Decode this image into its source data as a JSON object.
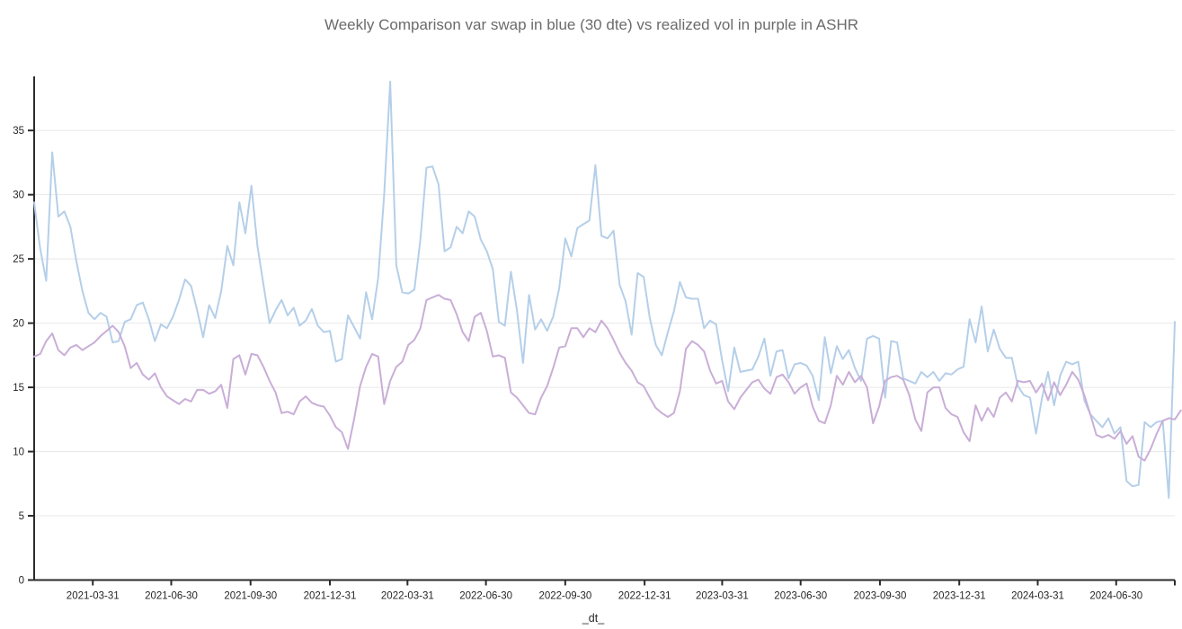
{
  "title": "Weekly Comparison var swap in blue (30 dte) vs realized vol in purple in ASHR",
  "colors": {
    "var_swap_blue": "#b5cfe9",
    "realized_vol_purple": "#c9aed7",
    "gridline": "#e8e8e8",
    "axis": "#2b2b2b",
    "title_text": "#6b6b6b",
    "tick_text": "#262626",
    "background": "#ffffff"
  },
  "chart_data": {
    "type": "line",
    "title": "Weekly Comparison var swap in blue (30 dte) vs realized vol in purple in ASHR",
    "xlabel": "_dt_",
    "ylabel": "",
    "x_start": "2021-01-22",
    "x_frequency": "weekly",
    "x_tick_labels": [
      "2021-03-31",
      "2021-06-30",
      "2021-09-30",
      "2021-12-31",
      "2022-03-31",
      "2022-06-30",
      "2022-09-30",
      "2022-12-31",
      "2023-03-31",
      "2023-06-30",
      "2023-09-30",
      "2023-12-31",
      "2024-03-31",
      "2024-06-30"
    ],
    "y_ticks": [
      0,
      5,
      10,
      15,
      20,
      25,
      30,
      35
    ],
    "ylim": [
      0,
      39.2
    ],
    "grid": "horizontal-only",
    "legend_position": "none",
    "series": [
      {
        "name": "var swap (30 dte)",
        "color": "#b5cfe9",
        "values": [
          29.4,
          25.8,
          23.3,
          33.3,
          28.3,
          28.7,
          27.5,
          24.8,
          22.5,
          20.8,
          20.3,
          20.8,
          20.5,
          18.5,
          18.6,
          20.1,
          20.3,
          21.4,
          21.6,
          20.3,
          18.6,
          19.9,
          19.6,
          20.5,
          21.8,
          23.4,
          22.9,
          21.0,
          18.9,
          21.4,
          20.4,
          22.5,
          26.0,
          24.5,
          29.4,
          27.0,
          30.7,
          26.0,
          23.0,
          20.0,
          21.0,
          21.8,
          20.6,
          21.2,
          19.8,
          20.2,
          21.1,
          19.8,
          19.3,
          19.4,
          17.0,
          17.2,
          20.6,
          19.7,
          18.8,
          22.4,
          20.3,
          23.5,
          30.0,
          38.8,
          24.5,
          22.4,
          22.3,
          22.6,
          26.5,
          32.1,
          32.2,
          30.8,
          25.6,
          25.9,
          27.5,
          27.0,
          28.7,
          28.3,
          26.5,
          25.6,
          24.2,
          20.1,
          19.8,
          24.0,
          21.0,
          16.9,
          22.2,
          19.5,
          20.3,
          19.4,
          20.5,
          22.7,
          26.6,
          25.2,
          27.4,
          27.7,
          28.0,
          32.3,
          26.8,
          26.6,
          27.2,
          23.0,
          21.7,
          19.1,
          23.9,
          23.6,
          20.4,
          18.3,
          17.5,
          19.3,
          20.9,
          23.2,
          22.0,
          21.9,
          21.9,
          19.6,
          20.2,
          19.9,
          17.1,
          14.7,
          18.1,
          16.2,
          16.3,
          16.4,
          17.4,
          18.8,
          15.9,
          17.8,
          17.9,
          15.7,
          16.8,
          16.9,
          16.7,
          15.9,
          14.0,
          18.9,
          16.1,
          18.2,
          17.2,
          17.9,
          16.5,
          15.5,
          18.8,
          19.0,
          18.8,
          14.2,
          18.6,
          18.5,
          15.7,
          15.5,
          15.3,
          16.2,
          15.8,
          16.2,
          15.5,
          16.1,
          16.0,
          16.4,
          16.6,
          20.3,
          18.5,
          21.3,
          17.8,
          19.5,
          18.0,
          17.3,
          17.3,
          15.1,
          14.4,
          14.2,
          11.4,
          14.2,
          16.2,
          13.6,
          15.9,
          17.0,
          16.8,
          17.0,
          14.0,
          12.9,
          12.4,
          11.9,
          12.6,
          11.4,
          11.9,
          7.7,
          7.3,
          7.4,
          12.3,
          11.9,
          12.3,
          12.4,
          6.4,
          20.1
        ]
      },
      {
        "name": "realized vol",
        "color": "#c9aed7",
        "values": [
          17.4,
          17.6,
          18.6,
          19.2,
          17.9,
          17.5,
          18.1,
          18.3,
          17.9,
          18.2,
          18.5,
          19.0,
          19.4,
          19.8,
          19.3,
          18.2,
          16.5,
          16.9,
          16.0,
          15.6,
          16.1,
          15.0,
          14.3,
          14.0,
          13.7,
          14.1,
          13.9,
          14.8,
          14.8,
          14.5,
          14.7,
          15.2,
          13.4,
          17.2,
          17.5,
          16.0,
          17.6,
          17.5,
          16.6,
          15.5,
          14.6,
          13.0,
          13.1,
          12.9,
          13.9,
          14.3,
          13.8,
          13.6,
          13.5,
          12.8,
          11.9,
          11.5,
          10.2,
          12.5,
          15.1,
          16.6,
          17.6,
          17.4,
          13.7,
          15.5,
          16.6,
          17.0,
          18.3,
          18.7,
          19.6,
          21.8,
          22.0,
          22.2,
          21.9,
          21.8,
          20.7,
          19.3,
          18.6,
          20.5,
          20.8,
          19.4,
          17.4,
          17.5,
          17.3,
          14.6,
          14.2,
          13.6,
          13.0,
          12.9,
          14.2,
          15.1,
          16.5,
          18.1,
          18.2,
          19.6,
          19.6,
          18.9,
          19.6,
          19.3,
          20.2,
          19.6,
          18.7,
          17.7,
          16.9,
          16.3,
          15.4,
          15.1,
          14.2,
          13.4,
          13.0,
          12.7,
          13.0,
          14.7,
          18.0,
          18.6,
          18.3,
          17.8,
          16.3,
          15.3,
          15.5,
          13.9,
          13.3,
          14.2,
          14.8,
          15.4,
          15.6,
          14.9,
          14.5,
          15.8,
          16.0,
          15.4,
          14.5,
          15.0,
          15.3,
          13.5,
          12.4,
          12.2,
          13.6,
          15.9,
          15.2,
          16.2,
          15.4,
          15.9,
          15.0,
          12.2,
          13.5,
          15.5,
          15.8,
          15.9,
          15.6,
          14.4,
          12.5,
          11.6,
          14.6,
          15.0,
          15.0,
          13.4,
          12.9,
          12.7,
          11.5,
          10.8,
          13.6,
          12.4,
          13.4,
          12.7,
          14.2,
          14.6,
          13.9,
          15.5,
          15.4,
          15.5,
          14.6,
          15.3,
          14.0,
          15.4,
          14.4,
          15.2,
          16.2,
          15.6,
          14.4,
          12.9,
          11.3,
          11.1,
          11.3,
          11.0,
          11.6,
          10.6,
          11.2,
          9.6,
          9.3,
          10.2,
          11.4,
          12.4,
          12.6,
          12.5,
          13.2
        ]
      }
    ]
  }
}
